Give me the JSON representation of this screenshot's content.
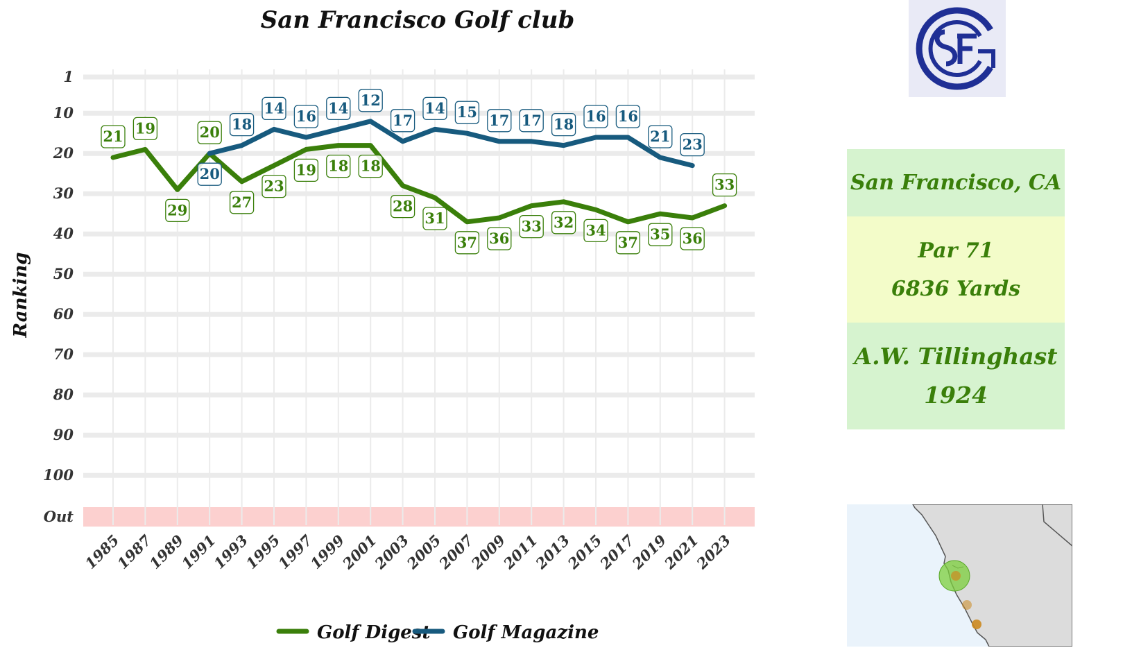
{
  "chart_data": {
    "type": "line",
    "title": "San Francisco Golf club",
    "ylabel": "Ranking",
    "xlabel": "",
    "x_ticks": [
      "1985",
      "1987",
      "1989",
      "1991",
      "1993",
      "1995",
      "1997",
      "1999",
      "2001",
      "2003",
      "2005",
      "2007",
      "2009",
      "2011",
      "2013",
      "2015",
      "2017",
      "2019",
      "2021",
      "2023"
    ],
    "y_ticks": [
      "1",
      "10",
      "20",
      "30",
      "40",
      "50",
      "60",
      "70",
      "80",
      "90",
      "100",
      "Out"
    ],
    "y_reversed": true,
    "xlim": [
      1983,
      2025
    ],
    "ylim": [
      1,
      110
    ],
    "grid": true,
    "legend_position": "bottom",
    "series": [
      {
        "name": "Golf Digest",
        "color": "#3a7f0a",
        "x": [
          1985,
          1987,
          1989,
          1991,
          1993,
          1995,
          1997,
          1999,
          2001,
          2003,
          2005,
          2007,
          2009,
          2011,
          2013,
          2015,
          2017,
          2019,
          2021,
          2023
        ],
        "values": [
          21,
          19,
          29,
          20,
          27,
          23,
          19,
          18,
          18,
          28,
          31,
          37,
          36,
          33,
          32,
          34,
          37,
          35,
          36,
          33
        ]
      },
      {
        "name": "Golf Magazine",
        "color": "#175a7e",
        "x": [
          1991,
          1993,
          1995,
          1997,
          1999,
          2001,
          2003,
          2005,
          2007,
          2009,
          2011,
          2013,
          2015,
          2017,
          2019,
          2021
        ],
        "values": [
          20,
          18,
          14,
          16,
          14,
          12,
          17,
          14,
          15,
          17,
          17,
          18,
          16,
          16,
          21,
          23
        ]
      }
    ]
  },
  "info": {
    "location": "San Francisco, CA",
    "par": "Par 71",
    "yards": "6836 Yards",
    "architect": "A.W. Tillinghast",
    "year": "1924"
  },
  "colors": {
    "out_band": "#fcd0cf",
    "grid": "#ebebeb",
    "logo_blue": "#1f2f95",
    "map_land": "#dcdcdc",
    "map_water": "#eaf3fb",
    "map_highlight": "#7ccf3c",
    "map_marker": "#cc8a20"
  },
  "icons": {
    "logo": "sfgc-monogram-logo",
    "map": "california-coast-map"
  }
}
